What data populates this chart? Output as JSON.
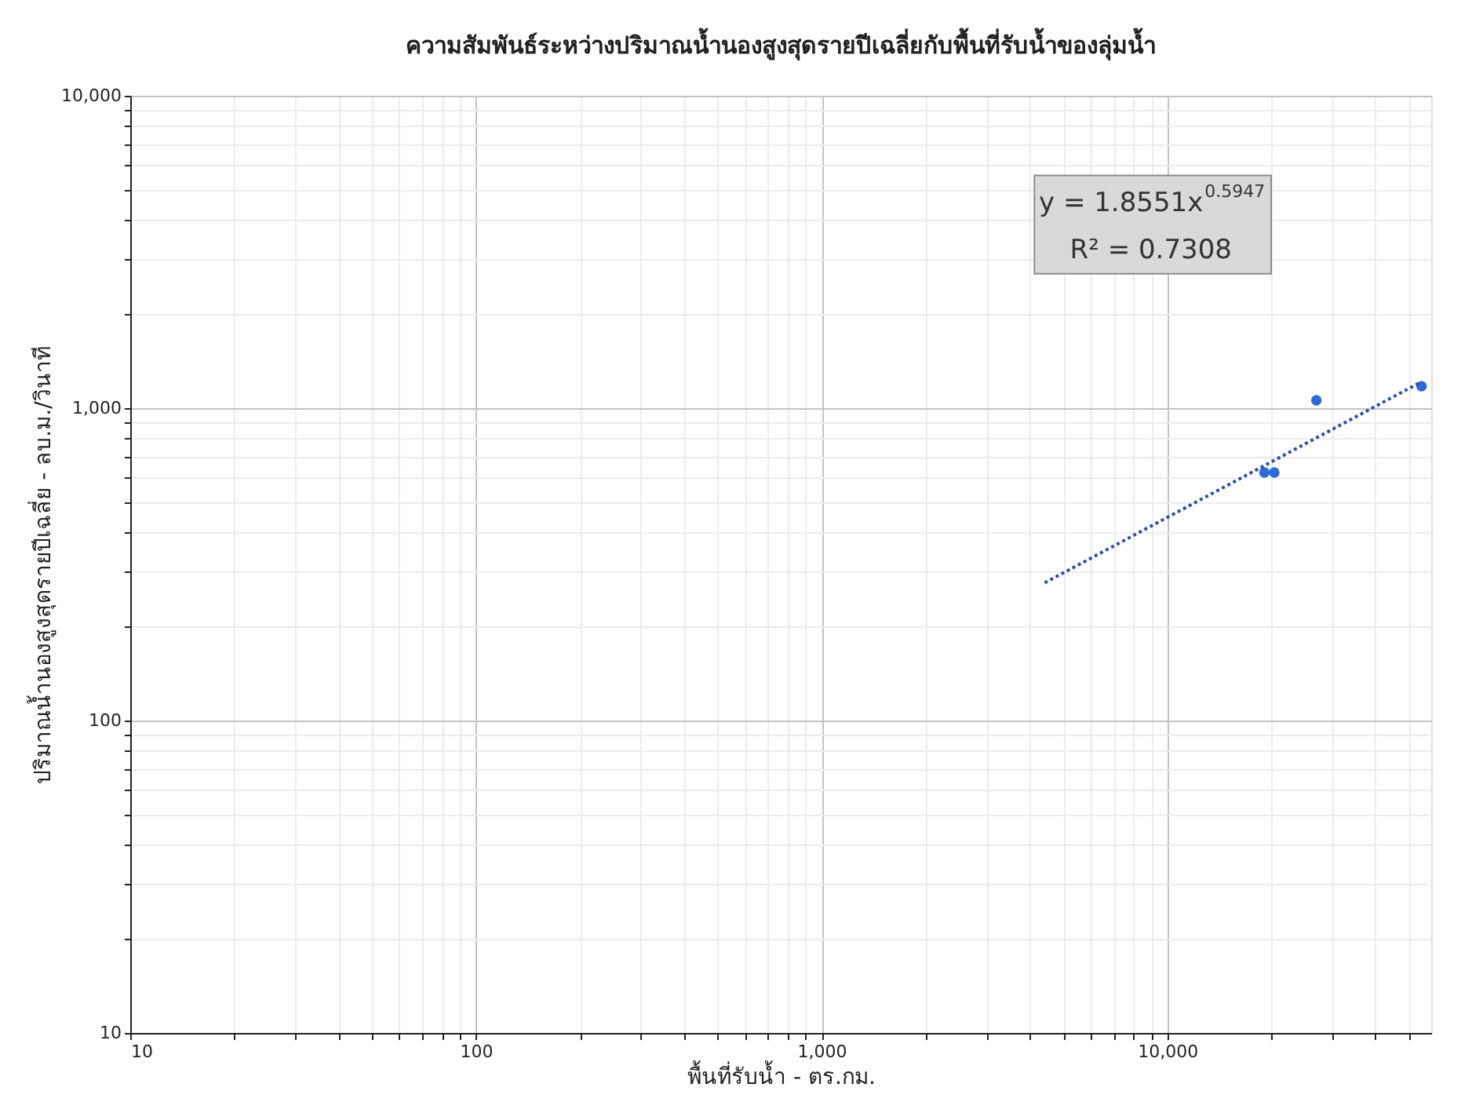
{
  "chart_data": {
    "type": "scatter",
    "title": "ความสัมพันธ์ระหว่างปริมาณน้ำนองสูงสุดรายปีเฉลี่ยกับพื้นที่รับน้ำของลุ่มน้ำ",
    "xlabel": "พื้นที่รับน้ำ - ตร.กม.",
    "ylabel": "ปริมาณน้ำนองสูงสุดรายปีเฉลี่ย - ลบ.ม./วินาที",
    "log": "xy",
    "grid": true,
    "marker": "circle",
    "xlim": [
      10,
      58000
    ],
    "ylim": [
      10,
      10000
    ],
    "xticks": [
      10,
      {
        "value": 20,
        "label": null
      },
      {
        "value": 30,
        "label": null
      },
      {
        "value": 40,
        "label": null
      },
      {
        "value": 50,
        "label": null
      },
      {
        "value": 60,
        "label": null
      },
      {
        "value": 70,
        "label": null
      },
      {
        "value": 80,
        "label": null
      },
      {
        "value": 90,
        "label": null
      },
      100,
      {
        "value": 200,
        "label": null
      },
      {
        "value": 300,
        "label": null
      },
      {
        "value": 400,
        "label": null
      },
      {
        "value": 500,
        "label": null
      },
      {
        "value": 600,
        "label": null
      },
      {
        "value": 700,
        "label": null
      },
      {
        "value": 800,
        "label": null
      },
      {
        "value": 900,
        "label": null
      },
      {
        "value": 1000,
        "label": "1,000"
      },
      {
        "value": 2000,
        "label": null
      },
      {
        "value": 3000,
        "label": null
      },
      {
        "value": 4000,
        "label": null
      },
      {
        "value": 5000,
        "label": null
      },
      {
        "value": 6000,
        "label": null
      },
      {
        "value": 7000,
        "label": null
      },
      {
        "value": 8000,
        "label": null
      },
      {
        "value": 9000,
        "label": null
      },
      {
        "value": 10000,
        "label": "10,000"
      },
      {
        "value": 20000,
        "label": null
      },
      {
        "value": 30000,
        "label": null
      },
      {
        "value": 40000,
        "label": null
      },
      {
        "value": 50000,
        "label": null
      }
    ],
    "yticks": [
      10,
      {
        "value": 20,
        "label": null
      },
      {
        "value": 30,
        "label": null
      },
      {
        "value": 40,
        "label": null
      },
      {
        "value": 50,
        "label": null
      },
      {
        "value": 60,
        "label": null
      },
      {
        "value": 70,
        "label": null
      },
      {
        "value": 80,
        "label": null
      },
      {
        "value": 90,
        "label": null
      },
      100,
      {
        "value": 200,
        "label": null
      },
      {
        "value": 300,
        "label": null
      },
      {
        "value": 400,
        "label": null
      },
      {
        "value": 500,
        "label": null
      },
      {
        "value": 600,
        "label": null
      },
      {
        "value": 700,
        "label": null
      },
      {
        "value": 800,
        "label": null
      },
      {
        "value": 900,
        "label": null
      },
      {
        "value": 1000,
        "label": "1,000"
      },
      {
        "value": 2000,
        "label": null
      },
      {
        "value": 3000,
        "label": null
      },
      {
        "value": 4000,
        "label": null
      },
      {
        "value": 5000,
        "label": null
      },
      {
        "value": 6000,
        "label": null
      },
      {
        "value": 7000,
        "label": null
      },
      {
        "value": 8000,
        "label": null
      },
      {
        "value": 9000,
        "label": null
      },
      {
        "value": 10000,
        "label": "10,000"
      }
    ],
    "series": [
      {
        "color": "#2e6bd6",
        "x": [
          19100,
          20400,
          27000,
          54400
        ],
        "values": [
          622,
          622,
          1060,
          1175
        ]
      },
      {
        "type": "line",
        "color": "#2f4fa0",
        "line_style": "dotted",
        "marker": "none",
        "x": [
          4420,
          54400
        ],
        "values": [
          276,
          1215
        ]
      }
    ],
    "annotations": [
      "y = 1.8551x$^{0.5947}$",
      "R² = 0.7308"
    ]
  }
}
